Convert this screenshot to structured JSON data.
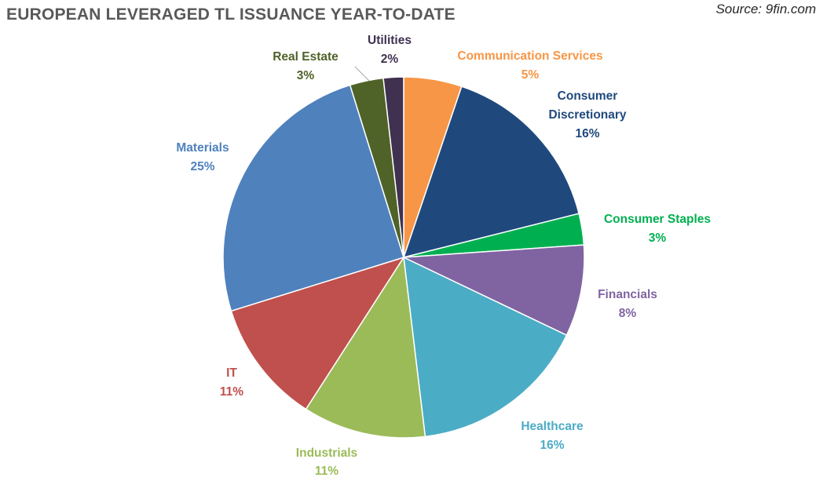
{
  "header": {
    "title": "EUROPEAN LEVERAGED TL ISSUANCE YEAR-TO-DATE",
    "source": "Source: 9fin.com"
  },
  "chart_data": {
    "type": "pie",
    "title": "EUROPEAN LEVERAGED TL ISSUANCE YEAR-TO-DATE",
    "start_angle_deg": 0,
    "direction": "clockwise",
    "slices": [
      {
        "name": "Communication Services",
        "value": 5.2,
        "label": "5%",
        "color": "#F79646"
      },
      {
        "name": "Consumer Discretionary",
        "value": 15.9,
        "label": "16%",
        "color": "#1F497D"
      },
      {
        "name": "Consumer Staples",
        "value": 2.8,
        "label": "3%",
        "color": "#00B050"
      },
      {
        "name": "Financials",
        "value": 8.2,
        "label": "8%",
        "color": "#8064A2"
      },
      {
        "name": "Healthcare",
        "value": 16.0,
        "label": "16%",
        "color": "#4BACC6"
      },
      {
        "name": "Industrials",
        "value": 11.0,
        "label": "11%",
        "color": "#9BBB59"
      },
      {
        "name": "IT",
        "value": 11.1,
        "label": "11%",
        "color": "#C0504D"
      },
      {
        "name": "Materials",
        "value": 25.0,
        "label": "25%",
        "color": "#4F81BD"
      },
      {
        "name": "Real Estate",
        "value": 3.0,
        "label": "3%",
        "color": "#4F6228"
      },
      {
        "name": "Utilities",
        "value": 1.8,
        "label": "2%",
        "color": "#403151"
      }
    ]
  }
}
